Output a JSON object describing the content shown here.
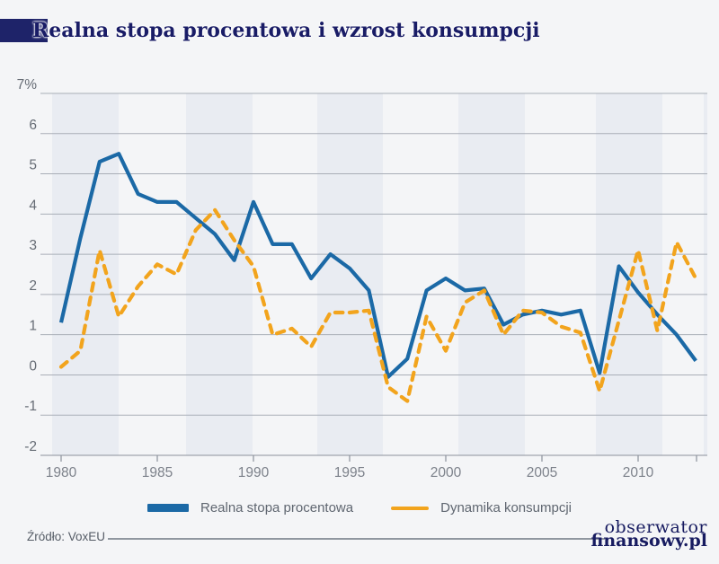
{
  "header": {
    "title": "Realna stopa procentowa i wzrost konsumpcji"
  },
  "colors": {
    "title_navy": "#191c66",
    "accent_box": "#1e2369",
    "band": "#e9ecf2",
    "grid": "#a9aeb7",
    "axis": "#8b919b",
    "line_blue": "#1b69a6",
    "line_orange": "#f2a41d"
  },
  "chart_data": {
    "type": "line",
    "title": "Realna stopa procentowa i wzrost konsumpcji",
    "xlabel": "",
    "ylabel": "%",
    "ylim": [
      -2,
      7
    ],
    "grid": "horizontal",
    "legend_position": "bottom",
    "years": [
      1980,
      1981,
      1982,
      1983,
      1984,
      1985,
      1986,
      1987,
      1988,
      1989,
      1990,
      1991,
      1992,
      1993,
      1994,
      1995,
      1996,
      1997,
      1998,
      1999,
      2000,
      2001,
      2002,
      2003,
      2004,
      2005,
      2006,
      2007,
      2008,
      2009,
      2010,
      2011,
      2012,
      2013
    ],
    "series": [
      {
        "name": "Realna stopa procentowa",
        "color": "#1b69a6",
        "style": "solid",
        "values": [
          1.3,
          3.4,
          5.3,
          5.5,
          4.5,
          4.3,
          4.3,
          3.9,
          3.5,
          2.85,
          4.3,
          3.25,
          3.25,
          2.4,
          3.0,
          2.65,
          2.1,
          -0.05,
          0.4,
          2.1,
          2.4,
          2.1,
          2.15,
          1.25,
          1.5,
          1.6,
          1.5,
          1.6,
          0.05,
          2.7,
          2.05,
          1.5,
          1.0,
          0.35
        ]
      },
      {
        "name": "Dynamika konsumpcji",
        "color": "#f2a41d",
        "style": "dashed",
        "values": [
          0.2,
          0.6,
          3.1,
          1.45,
          2.2,
          2.75,
          2.5,
          3.6,
          4.1,
          3.35,
          2.7,
          1.0,
          1.15,
          0.7,
          1.55,
          1.55,
          1.6,
          -0.3,
          -0.65,
          1.45,
          0.6,
          1.8,
          2.1,
          1.0,
          1.6,
          1.55,
          1.2,
          1.05,
          -0.4,
          1.35,
          3.1,
          1.1,
          3.3,
          2.4
        ]
      }
    ],
    "y_ticks": [
      {
        "value": 7,
        "label": "7%"
      },
      {
        "value": 6,
        "label": "6"
      },
      {
        "value": 5,
        "label": "5"
      },
      {
        "value": 4,
        "label": "4"
      },
      {
        "value": 3,
        "label": "3"
      },
      {
        "value": 2,
        "label": "2"
      },
      {
        "value": 1,
        "label": "1"
      },
      {
        "value": 0,
        "label": "0"
      },
      {
        "value": -1,
        "label": "-1"
      },
      {
        "value": -2,
        "label": "-2"
      }
    ],
    "x_ticks": [
      {
        "value": 1980,
        "label": "1980"
      },
      {
        "value": 1985,
        "label": "1985"
      },
      {
        "value": 1990,
        "label": "1990"
      },
      {
        "value": 1995,
        "label": "1995"
      },
      {
        "value": 2000,
        "label": "2000"
      },
      {
        "value": 2005,
        "label": "2005"
      },
      {
        "value": 2010,
        "label": "2010"
      }
    ]
  },
  "legend": {
    "items": [
      {
        "label": "Realna stopa procentowa",
        "swatch": "bar"
      },
      {
        "label": "Dynamika konsumpcji",
        "swatch": "dashed-line"
      }
    ]
  },
  "footer": {
    "source": "Źródło: VoxEU",
    "logo_line1": "obserwator",
    "logo_line2": "finansowy.pl"
  }
}
